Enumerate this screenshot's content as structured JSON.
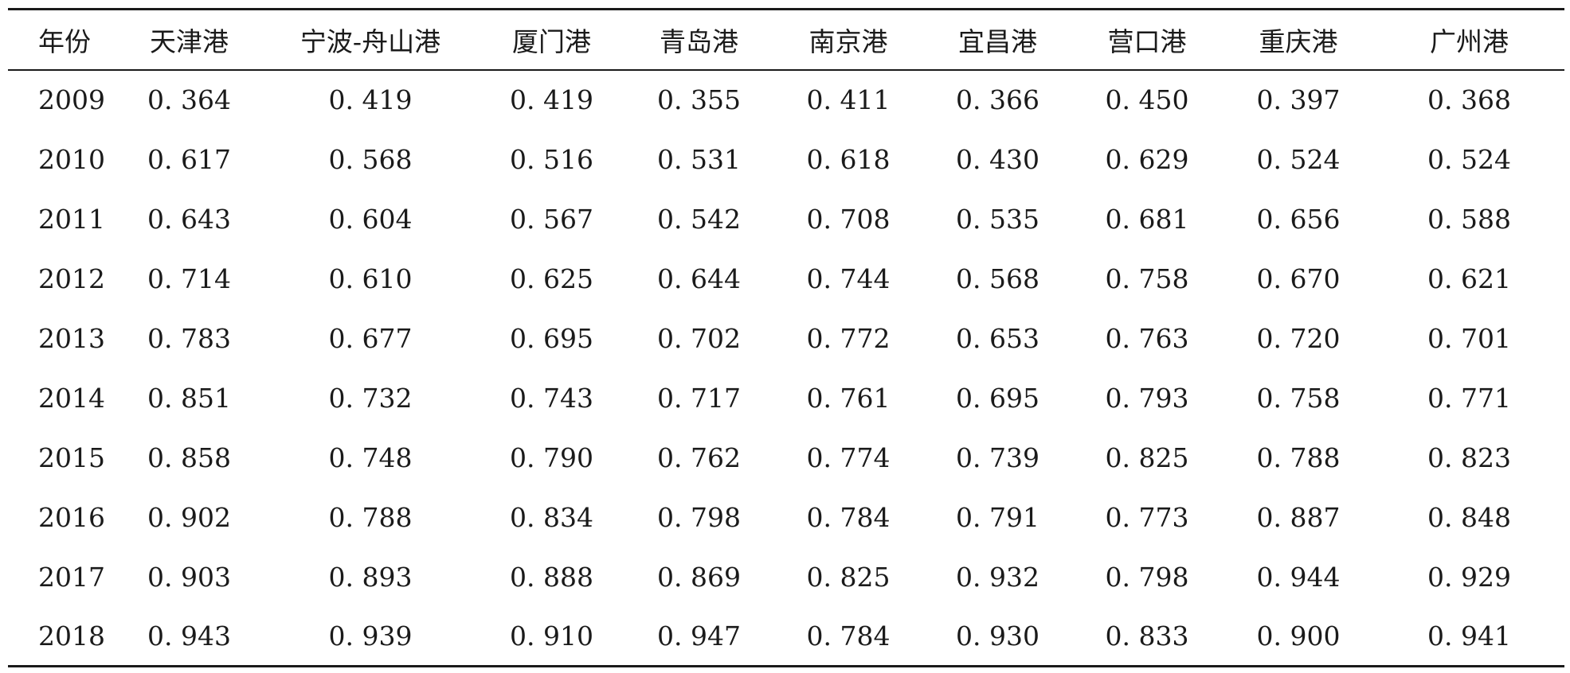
{
  "table": {
    "headers": [
      "年份",
      "天津港",
      "宁波-舟山港",
      "厦门港",
      "青岛港",
      "南京港",
      "宜昌港",
      "营口港",
      "重庆港",
      "广州港"
    ],
    "rows": [
      [
        "2009",
        "0. 364",
        "0. 419",
        "0. 419",
        "0. 355",
        "0. 411",
        "0. 366",
        "0. 450",
        "0. 397",
        "0. 368"
      ],
      [
        "2010",
        "0. 617",
        "0. 568",
        "0. 516",
        "0. 531",
        "0. 618",
        "0. 430",
        "0. 629",
        "0. 524",
        "0. 524"
      ],
      [
        "2011",
        "0. 643",
        "0. 604",
        "0. 567",
        "0. 542",
        "0. 708",
        "0. 535",
        "0. 681",
        "0. 656",
        "0. 588"
      ],
      [
        "2012",
        "0. 714",
        "0. 610",
        "0. 625",
        "0. 644",
        "0. 744",
        "0. 568",
        "0. 758",
        "0. 670",
        "0. 621"
      ],
      [
        "2013",
        "0. 783",
        "0. 677",
        "0. 695",
        "0. 702",
        "0. 772",
        "0. 653",
        "0. 763",
        "0. 720",
        "0. 701"
      ],
      [
        "2014",
        "0. 851",
        "0. 732",
        "0. 743",
        "0. 717",
        "0. 761",
        "0. 695",
        "0. 793",
        "0. 758",
        "0. 771"
      ],
      [
        "2015",
        "0. 858",
        "0. 748",
        "0. 790",
        "0. 762",
        "0. 774",
        "0. 739",
        "0. 825",
        "0. 788",
        "0. 823"
      ],
      [
        "2016",
        "0. 902",
        "0. 788",
        "0. 834",
        "0. 798",
        "0. 784",
        "0. 791",
        "0. 773",
        "0. 887",
        "0. 848"
      ],
      [
        "2017",
        "0. 903",
        "0. 893",
        "0. 888",
        "0. 869",
        "0. 825",
        "0. 932",
        "0. 798",
        "0. 944",
        "0. 929"
      ],
      [
        "2018",
        "0. 943",
        "0. 939",
        "0. 910",
        "0. 947",
        "0. 784",
        "0. 930",
        "0. 833",
        "0. 900",
        "0. 941"
      ]
    ]
  }
}
